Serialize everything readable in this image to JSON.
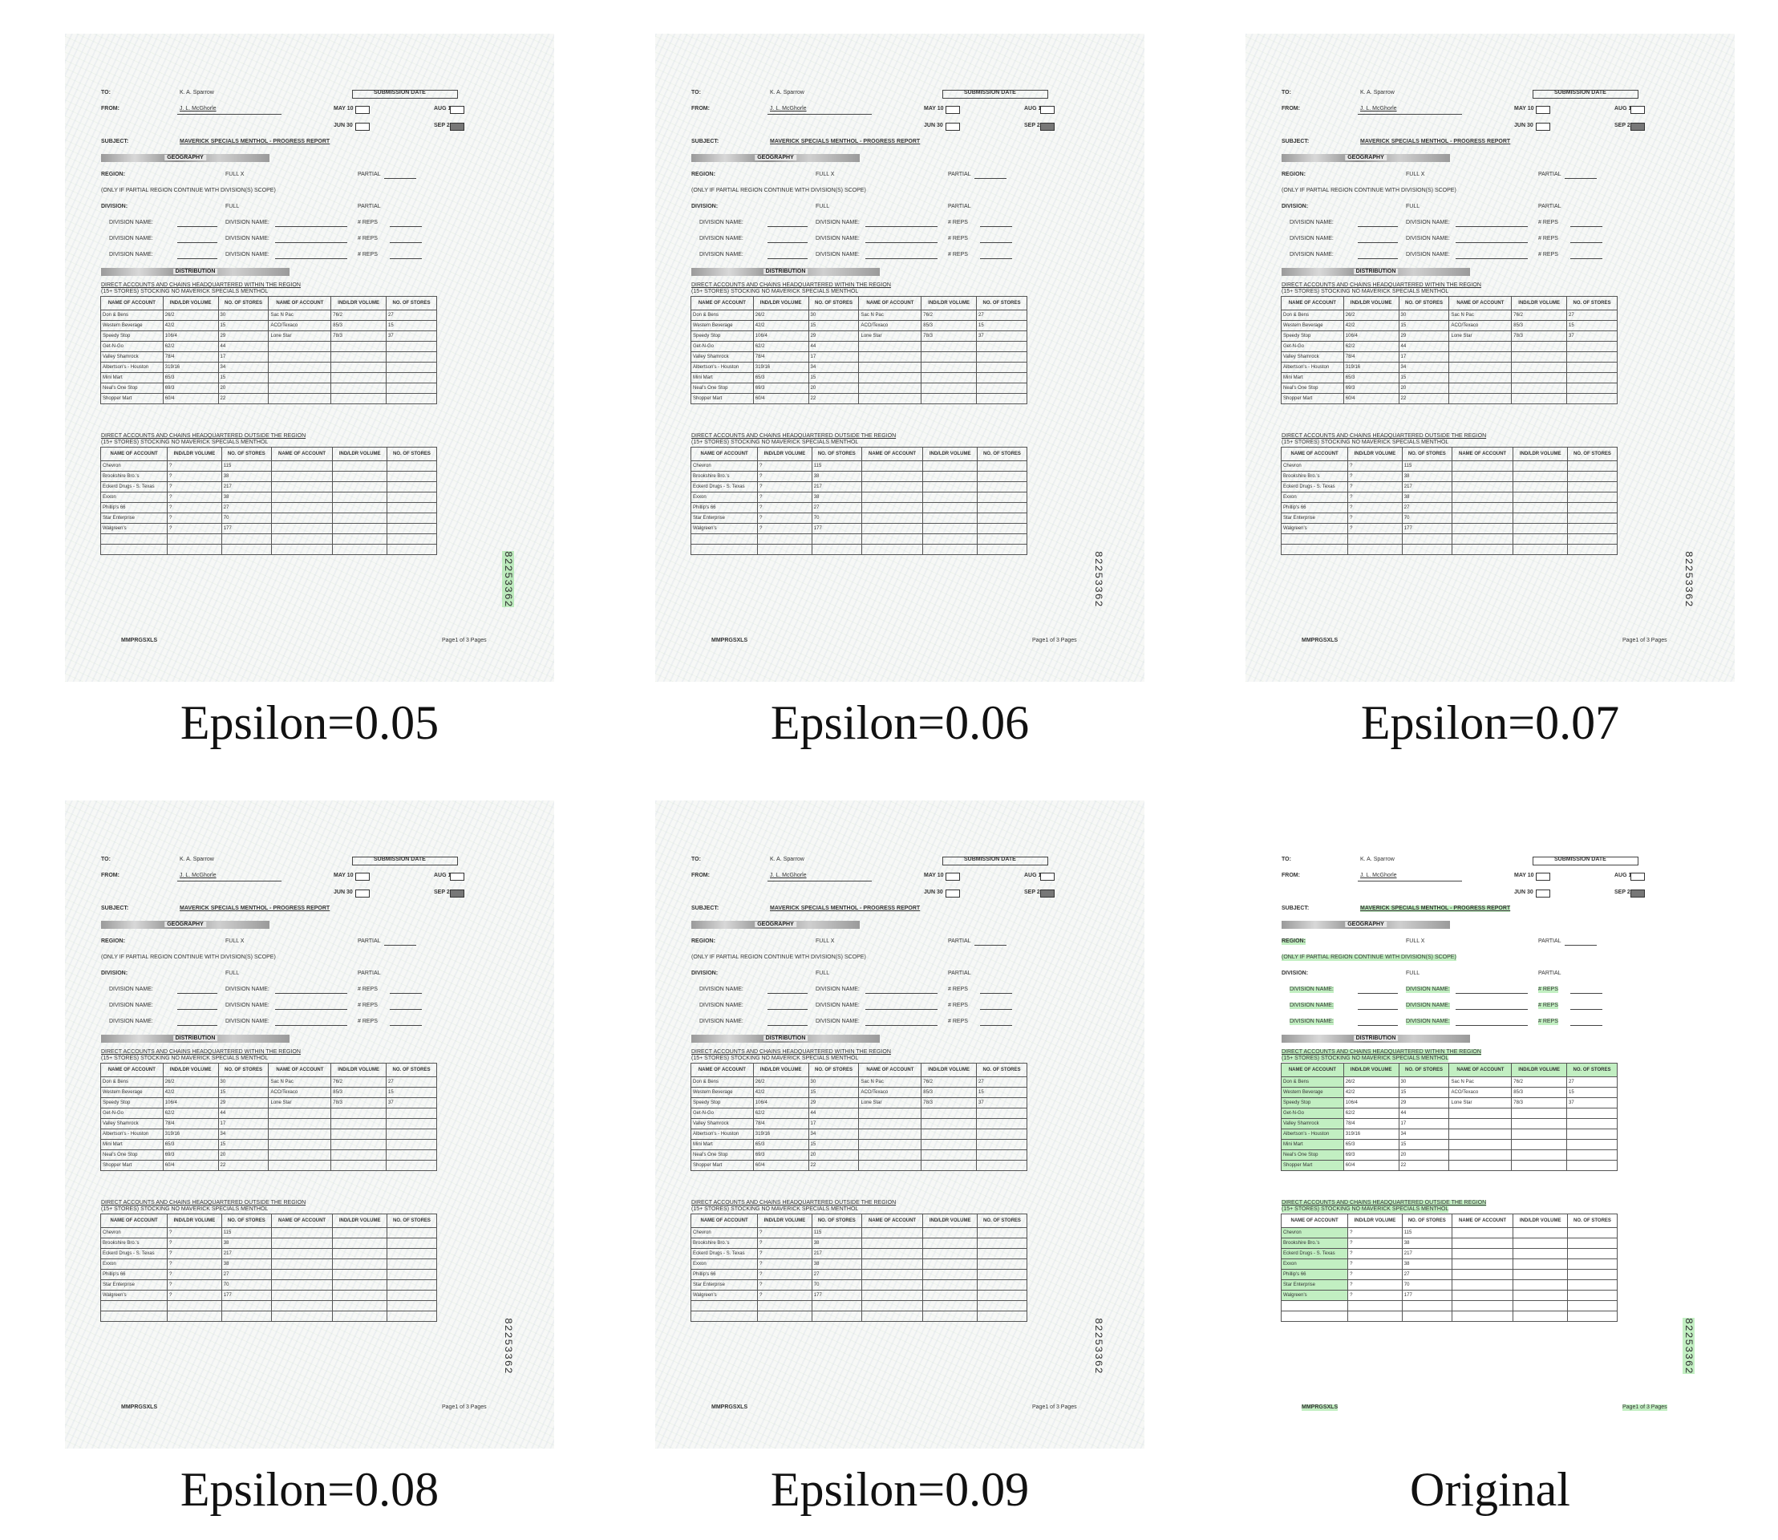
{
  "captions": [
    "Epsilon=0.05",
    "Epsilon=0.06",
    "Epsilon=0.07",
    "Epsilon=0.08",
    "Epsilon=0.09",
    "Original"
  ],
  "doc": {
    "to_label": "TO:",
    "to_value": "K. A. Sparrow",
    "from_label": "FROM:",
    "from_value": "J. L. McGhorle",
    "submission_date": "SUBMISSION DATE",
    "may": "MAY 10",
    "aug": "AUG 11",
    "jun": "JUN 30",
    "sep": "SEP 22",
    "subject_label": "SUBJECT:",
    "subject_value": "MAVERICK SPECIALS MENTHOL - PROGRESS REPORT",
    "geography": "GEOGRAPHY",
    "region_label": "REGION:",
    "full_x": "FULL   X",
    "partial": "PARTIAL",
    "only_if": "(ONLY IF PARTIAL REGION CONTINUE WITH DIVISION(S) SCOPE)",
    "division_label": "DIVISION:",
    "full": "FULL",
    "division_name": "DIVISION NAME:",
    "reps": "# REPS",
    "distribution": "DISTRIBUTION",
    "sec1_line1": "DIRECT ACCOUNTS AND CHAINS HEADQUARTERED WITHIN THE REGION",
    "sec1_line2": "(15+ STORES) STOCKING NO MAVERICK SPECIALS MENTHOL",
    "sec2_line1": "DIRECT ACCOUNTS AND CHAINS HEADQUARTERED OUTSIDE THE REGION",
    "sec2_line2": "(15+ STORES) STOCKING NO MAVERICK SPECIALS MENTHOL",
    "col_name": "NAME OF ACCOUNT",
    "col_ind": "IND/LDR VOLUME",
    "col_stores": "NO. OF STORES",
    "table1": [
      [
        "Don & Bens",
        "26/2",
        "30",
        "Sac N Pac",
        "76/2",
        "27"
      ],
      [
        "Western Beverage",
        "42/2",
        "15",
        "ACO/Texaco",
        "85/3",
        "15"
      ],
      [
        "Speedy Stop",
        "106/4",
        "29",
        "Lone Star",
        "78/3",
        "37"
      ],
      [
        "Get-N-Go",
        "62/2",
        "44",
        "",
        "",
        ""
      ],
      [
        "Valley Shamrock",
        "78/4",
        "17",
        "",
        "",
        ""
      ],
      [
        "Albertson's - Houston",
        "319/16",
        "34",
        "",
        "",
        ""
      ],
      [
        "Mini Mart",
        "65/3",
        "15",
        "",
        "",
        ""
      ],
      [
        "Neal's One Stop",
        "69/3",
        "20",
        "",
        "",
        ""
      ],
      [
        "Shopper Mart",
        "60/4",
        "22",
        "",
        "",
        ""
      ]
    ],
    "table2": [
      [
        "Chevron",
        "?",
        "115"
      ],
      [
        "Brookshire Bro.'s",
        "?",
        "38"
      ],
      [
        "Eckerd Drugs - S. Texas",
        "?",
        "217"
      ],
      [
        "Exxon",
        "?",
        "38"
      ],
      [
        "Phillip's 66",
        "?",
        "27"
      ],
      [
        "Star Enterprise",
        "?",
        "70"
      ],
      [
        "Walgreen's",
        "?",
        "177"
      ]
    ],
    "footer_left": "MMPRGSXLS",
    "footer_right": "Page1  of 3 Pages",
    "bates": "82253362"
  }
}
